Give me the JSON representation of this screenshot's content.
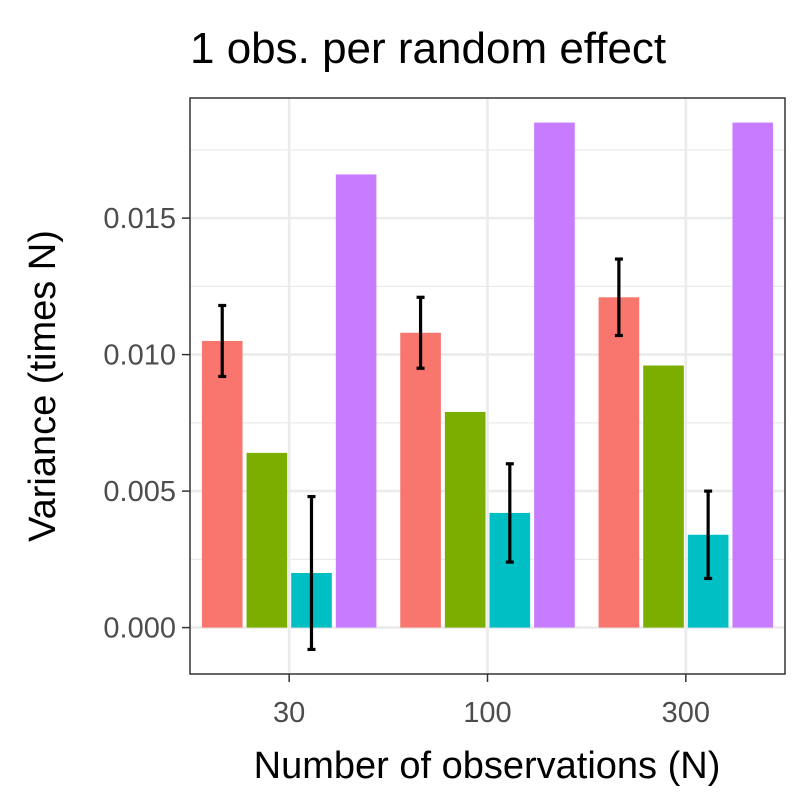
{
  "chart_data": {
    "type": "bar",
    "title": "1 obs. per random effect",
    "xlabel": "Number of observations (N)",
    "ylabel": "Variance (times N)",
    "categories": [
      "30",
      "100",
      "300"
    ],
    "yticks": [
      "0.000",
      "0.005",
      "0.010",
      "0.015"
    ],
    "ytick_values": [
      0,
      0.005,
      0.01,
      0.015
    ],
    "ylim": [
      -0.0017,
      0.0194
    ],
    "grid": true,
    "legend": "none",
    "series": [
      {
        "color": "#F8766D",
        "values": [
          0.0105,
          0.0108,
          0.0121
        ],
        "error_low": [
          0.0092,
          0.0095,
          0.0107
        ],
        "error_high": [
          0.0118,
          0.0121,
          0.0135
        ]
      },
      {
        "color": "#7CAE00",
        "values": [
          0.0064,
          0.0079,
          0.0096
        ]
      },
      {
        "color": "#00BFC4",
        "values": [
          0.002,
          0.0042,
          0.0034
        ],
        "error_low": [
          -0.0008,
          0.0024,
          0.0018
        ],
        "error_high": [
          0.0048,
          0.006,
          0.005
        ]
      },
      {
        "color": "#C77CFF",
        "values": [
          0.0166,
          0.0185,
          0.0185
        ]
      }
    ]
  }
}
